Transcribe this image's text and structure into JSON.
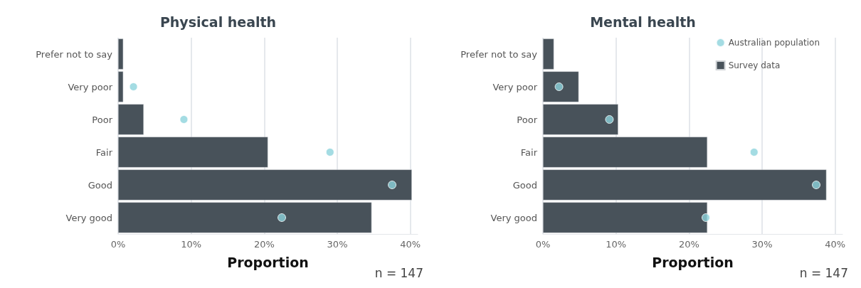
{
  "chart_data": [
    {
      "type": "bar",
      "title": "Physical health",
      "xlabel": "Proportion",
      "orientation": "horizontal",
      "categories": [
        "Prefer not to say",
        "Very poor",
        "Poor",
        "Fair",
        "Good",
        "Very good"
      ],
      "series": [
        {
          "color": "#48525a",
          "values": [
            0.7,
            0.7,
            3.5,
            20.5,
            40.2,
            34.7
          ]
        },
        {
          "type": "scatter",
          "color": "#8dd3dc",
          "x": [
            "Very poor",
            "Poor",
            "Fair",
            "Good",
            "Very good"
          ],
          "values": [
            2.1,
            9.0,
            29.0,
            37.5,
            22.4
          ]
        }
      ],
      "xlim": [
        0,
        41
      ],
      "xticks": [
        {
          "value": 0,
          "label": "0%"
        },
        {
          "value": 10,
          "label": "10%"
        },
        {
          "value": 20,
          "label": "20%"
        },
        {
          "value": 30,
          "label": "30%"
        },
        {
          "value": 40,
          "label": "40%"
        }
      ],
      "grid": "x",
      "legend": false,
      "marker": "circle",
      "annotations": [
        "n = 147"
      ]
    },
    {
      "type": "bar",
      "title": "Mental health",
      "xlabel": "Proportion",
      "orientation": "horizontal",
      "categories": [
        "Prefer not to say",
        "Very poor",
        "Poor",
        "Fair",
        "Good",
        "Very good"
      ],
      "series": [
        {
          "type": "scatter",
          "name": "Australian population",
          "color": "#8dd3dc",
          "x": [
            "Very poor",
            "Poor",
            "Fair",
            "Good",
            "Very good"
          ],
          "values": [
            2.2,
            9.1,
            28.9,
            37.4,
            22.3
          ]
        },
        {
          "name": "Survey data",
          "color": "#48525a",
          "values": [
            1.5,
            4.9,
            10.3,
            22.5,
            38.8,
            22.5
          ]
        }
      ],
      "xlim": [
        0,
        41
      ],
      "xticks": [
        {
          "value": 0,
          "label": "0%"
        },
        {
          "value": 10,
          "label": "10%"
        },
        {
          "value": 20,
          "label": "20%"
        },
        {
          "value": 30,
          "label": "30%"
        },
        {
          "value": 40,
          "label": "40%"
        }
      ],
      "grid": "x",
      "legend": "top right",
      "marker": "circle",
      "annotations": [
        "n = 147"
      ]
    }
  ]
}
